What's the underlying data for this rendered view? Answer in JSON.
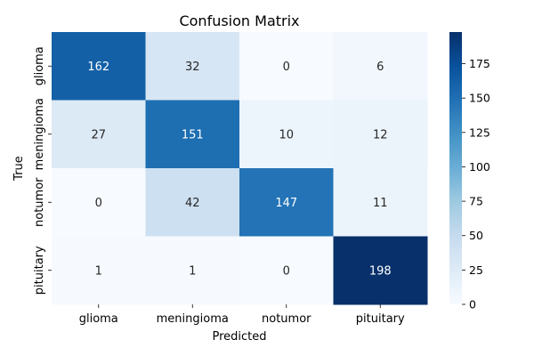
{
  "chart_data": {
    "type": "heatmap",
    "title": "Confusion Matrix",
    "xlabel": "Predicted",
    "ylabel": "True",
    "x_categories": [
      "glioma",
      "meningioma",
      "notumor",
      "pituitary"
    ],
    "y_categories": [
      "glioma",
      "meningioma",
      "notumor",
      "pituitary"
    ],
    "values": [
      [
        162,
        32,
        0,
        6
      ],
      [
        27,
        151,
        10,
        12
      ],
      [
        0,
        42,
        147,
        11
      ],
      [
        1,
        1,
        0,
        198
      ]
    ],
    "colorbar": {
      "min": 0,
      "max": 198,
      "ticks": [
        0,
        25,
        50,
        75,
        100,
        125,
        150,
        175
      ],
      "colormap": "Blues"
    },
    "colors": {
      "low": "#f7fbff",
      "high": "#08306b"
    }
  }
}
